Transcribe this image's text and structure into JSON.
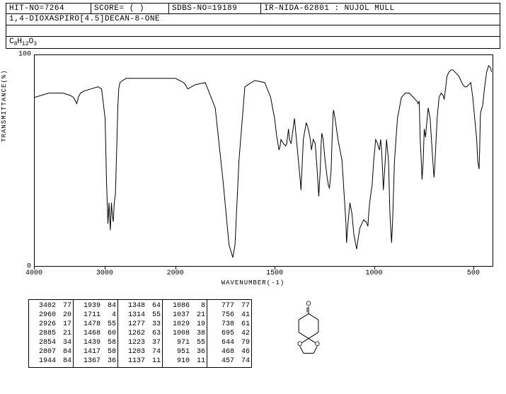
{
  "header": {
    "hit_no": "HIT-NO=7264",
    "score": "SCORE=  (  )",
    "sdbs_no": "SDBS-NO=19189",
    "ir_info": "IR-NIDA-62801 : NUJOL MULL"
  },
  "compound_name": "1,4-DIOXASPIRO[4.5]DECAN-8-ONE",
  "formula_html": "C<sub>8</sub>H<sub>12</sub>O<sub>3</sub>",
  "chart": {
    "type": "line",
    "y_label": "TRANSMITTANCE(%)",
    "x_label": "WAVENUMBER(-1)",
    "y_ticks": [
      {
        "v": 0,
        "label": "0"
      },
      {
        "v": 100,
        "label": "100"
      }
    ],
    "x_ticks_numeric": [
      4000,
      3000,
      2000,
      1500,
      1000,
      500
    ],
    "x_break": 2000,
    "x_left_range": [
      4000,
      2000
    ],
    "x_right_range": [
      2000,
      400
    ],
    "ylim": [
      0,
      100
    ],
    "line_color": "#000000",
    "background_color": "#ffffff",
    "border_color": "#000000",
    "line_width": 1,
    "trace": [
      [
        4000,
        80
      ],
      [
        3900,
        81
      ],
      [
        3800,
        82
      ],
      [
        3700,
        82
      ],
      [
        3600,
        82
      ],
      [
        3500,
        81
      ],
      [
        3450,
        80
      ],
      [
        3402,
        77
      ],
      [
        3380,
        80
      ],
      [
        3350,
        82
      ],
      [
        3300,
        83
      ],
      [
        3200,
        84
      ],
      [
        3100,
        85
      ],
      [
        3050,
        84
      ],
      [
        3000,
        70
      ],
      [
        2980,
        40
      ],
      [
        2960,
        20
      ],
      [
        2945,
        30
      ],
      [
        2926,
        17
      ],
      [
        2910,
        30
      ],
      [
        2900,
        25
      ],
      [
        2885,
        21
      ],
      [
        2870,
        30
      ],
      [
        2854,
        34
      ],
      [
        2840,
        50
      ],
      [
        2820,
        75
      ],
      [
        2807,
        84
      ],
      [
        2790,
        87
      ],
      [
        2750,
        88
      ],
      [
        2700,
        89
      ],
      [
        2600,
        89
      ],
      [
        2500,
        89
      ],
      [
        2400,
        89
      ],
      [
        2300,
        89
      ],
      [
        2200,
        89
      ],
      [
        2100,
        89
      ],
      [
        2050,
        89
      ],
      [
        2000,
        89
      ],
      [
        1980,
        88
      ],
      [
        1960,
        87
      ],
      [
        1950,
        86
      ],
      [
        1939,
        84
      ],
      [
        1900,
        86
      ],
      [
        1850,
        87
      ],
      [
        1800,
        75
      ],
      [
        1760,
        40
      ],
      [
        1730,
        10
      ],
      [
        1711,
        4
      ],
      [
        1700,
        10
      ],
      [
        1680,
        50
      ],
      [
        1650,
        85
      ],
      [
        1600,
        88
      ],
      [
        1550,
        87
      ],
      [
        1520,
        80
      ],
      [
        1500,
        70
      ],
      [
        1490,
        62
      ],
      [
        1478,
        55
      ],
      [
        1472,
        57
      ],
      [
        1468,
        60
      ],
      [
        1455,
        58
      ],
      [
        1445,
        57
      ],
      [
        1439,
        58
      ],
      [
        1430,
        65
      ],
      [
        1425,
        60
      ],
      [
        1417,
        58
      ],
      [
        1400,
        70
      ],
      [
        1380,
        50
      ],
      [
        1370,
        40
      ],
      [
        1367,
        36
      ],
      [
        1360,
        50
      ],
      [
        1355,
        60
      ],
      [
        1348,
        64
      ],
      [
        1340,
        68
      ],
      [
        1330,
        65
      ],
      [
        1320,
        60
      ],
      [
        1314,
        55
      ],
      [
        1305,
        60
      ],
      [
        1295,
        58
      ],
      [
        1285,
        45
      ],
      [
        1277,
        33
      ],
      [
        1270,
        45
      ],
      [
        1265,
        58
      ],
      [
        1262,
        63
      ],
      [
        1255,
        60
      ],
      [
        1245,
        50
      ],
      [
        1235,
        42
      ],
      [
        1228,
        38
      ],
      [
        1223,
        37
      ],
      [
        1215,
        45
      ],
      [
        1210,
        60
      ],
      [
        1205,
        72
      ],
      [
        1203,
        74
      ],
      [
        1195,
        70
      ],
      [
        1180,
        60
      ],
      [
        1160,
        50
      ],
      [
        1140,
        20
      ],
      [
        1137,
        11
      ],
      [
        1130,
        20
      ],
      [
        1120,
        30
      ],
      [
        1110,
        25
      ],
      [
        1100,
        15
      ],
      [
        1090,
        10
      ],
      [
        1086,
        8
      ],
      [
        1080,
        12
      ],
      [
        1070,
        18
      ],
      [
        1060,
        20
      ],
      [
        1050,
        22
      ],
      [
        1042,
        21
      ],
      [
        1037,
        21
      ],
      [
        1034,
        20
      ],
      [
        1030,
        19
      ],
      [
        1029,
        19
      ],
      [
        1025,
        25
      ],
      [
        1020,
        30
      ],
      [
        1012,
        36
      ],
      [
        1008,
        38
      ],
      [
        1000,
        50
      ],
      [
        990,
        60
      ],
      [
        980,
        58
      ],
      [
        975,
        56
      ],
      [
        971,
        55
      ],
      [
        965,
        60
      ],
      [
        960,
        55
      ],
      [
        955,
        45
      ],
      [
        951,
        36
      ],
      [
        945,
        45
      ],
      [
        935,
        60
      ],
      [
        925,
        50
      ],
      [
        918,
        25
      ],
      [
        912,
        15
      ],
      [
        910,
        11
      ],
      [
        905,
        20
      ],
      [
        895,
        50
      ],
      [
        880,
        70
      ],
      [
        860,
        80
      ],
      [
        840,
        82
      ],
      [
        820,
        82
      ],
      [
        800,
        80
      ],
      [
        790,
        79
      ],
      [
        780,
        78
      ],
      [
        777,
        77
      ],
      [
        770,
        78
      ],
      [
        765,
        60
      ],
      [
        760,
        50
      ],
      [
        756,
        41
      ],
      [
        750,
        50
      ],
      [
        745,
        65
      ],
      [
        740,
        62
      ],
      [
        738,
        61
      ],
      [
        735,
        65
      ],
      [
        725,
        75
      ],
      [
        715,
        70
      ],
      [
        705,
        55
      ],
      [
        698,
        45
      ],
      [
        695,
        42
      ],
      [
        690,
        50
      ],
      [
        680,
        70
      ],
      [
        670,
        80
      ],
      [
        660,
        82
      ],
      [
        650,
        81
      ],
      [
        647,
        80
      ],
      [
        644,
        79
      ],
      [
        640,
        82
      ],
      [
        630,
        90
      ],
      [
        620,
        92
      ],
      [
        610,
        93
      ],
      [
        600,
        93
      ],
      [
        590,
        92
      ],
      [
        580,
        91
      ],
      [
        570,
        90
      ],
      [
        560,
        88
      ],
      [
        550,
        86
      ],
      [
        540,
        85
      ],
      [
        530,
        85
      ],
      [
        520,
        86
      ],
      [
        510,
        87
      ],
      [
        500,
        80
      ],
      [
        490,
        70
      ],
      [
        480,
        60
      ],
      [
        475,
        50
      ],
      [
        470,
        47
      ],
      [
        468,
        46
      ],
      [
        465,
        55
      ],
      [
        462,
        70
      ],
      [
        460,
        73
      ],
      [
        457,
        74
      ],
      [
        450,
        76
      ],
      [
        440,
        85
      ],
      [
        430,
        92
      ],
      [
        420,
        95
      ],
      [
        410,
        94
      ],
      [
        405,
        92
      ]
    ]
  },
  "peak_table": {
    "columns": [
      [
        [
          3402,
          77
        ],
        [
          2960,
          20
        ],
        [
          2926,
          17
        ],
        [
          2885,
          21
        ],
        [
          2854,
          34
        ],
        [
          2807,
          84
        ],
        [
          1944,
          84
        ]
      ],
      [
        [
          1939,
          84
        ],
        [
          1711,
          4
        ],
        [
          1478,
          55
        ],
        [
          1468,
          60
        ],
        [
          1439,
          58
        ],
        [
          1417,
          58
        ],
        [
          1367,
          36
        ]
      ],
      [
        [
          1348,
          64
        ],
        [
          1314,
          55
        ],
        [
          1277,
          33
        ],
        [
          1262,
          63
        ],
        [
          1223,
          37
        ],
        [
          1203,
          74
        ],
        [
          1137,
          11
        ]
      ],
      [
        [
          1086,
          8
        ],
        [
          1037,
          21
        ],
        [
          1029,
          19
        ],
        [
          1008,
          38
        ],
        [
          971,
          55
        ],
        [
          951,
          36
        ],
        [
          910,
          11
        ]
      ],
      [
        [
          777,
          77
        ],
        [
          756,
          41
        ],
        [
          738,
          61
        ],
        [
          695,
          42
        ],
        [
          644,
          79
        ],
        [
          468,
          46
        ],
        [
          457,
          74
        ]
      ]
    ],
    "font_size": 10,
    "border_color": "#000000",
    "text_color": "#000000"
  },
  "structure": {
    "description": "1,4-dioxaspiro[4.5]decan-8-one",
    "stroke": "#000000",
    "stroke_width": 1
  }
}
